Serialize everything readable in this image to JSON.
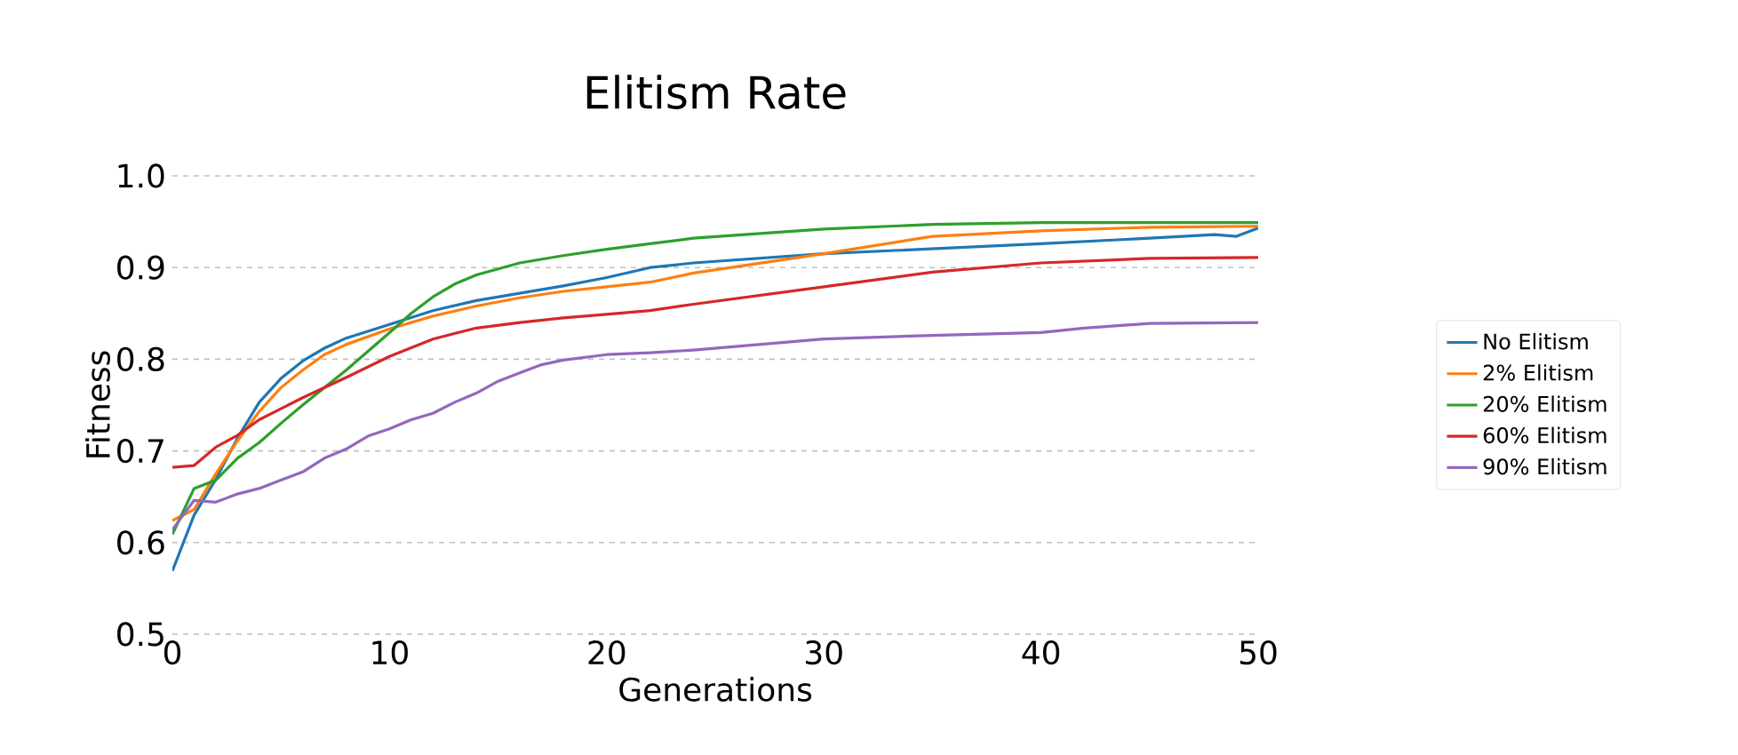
{
  "chart_data": {
    "type": "line",
    "title": "Elitism Rate",
    "xlabel": "Generations",
    "ylabel": "Fitness",
    "xlim": [
      0,
      50
    ],
    "ylim": [
      0.5,
      1.0
    ],
    "xticks": [
      0,
      10,
      20,
      30,
      40,
      50
    ],
    "yticks": [
      {
        "value": 0.5,
        "label": "0.5"
      },
      {
        "value": 0.6,
        "label": "0.6"
      },
      {
        "value": 0.7,
        "label": "0.7"
      },
      {
        "value": 0.8,
        "label": "0.8"
      },
      {
        "value": 0.9,
        "label": "0.9"
      },
      {
        "value": 1.0,
        "label": "1.0"
      }
    ],
    "grid": "y",
    "legend": "right",
    "series": [
      {
        "name": "No Elitism",
        "color": "#1f77b4",
        "x": [
          0,
          1,
          2,
          3,
          4,
          5,
          6,
          7,
          8,
          10,
          12,
          14,
          16,
          18,
          20,
          22,
          24,
          30,
          40,
          45,
          48,
          49,
          50
        ],
        "values": [
          0.569,
          0.63,
          0.669,
          0.714,
          0.753,
          0.779,
          0.798,
          0.812,
          0.823,
          0.838,
          0.853,
          0.864,
          0.872,
          0.88,
          0.889,
          0.9,
          0.905,
          0.915,
          0.926,
          0.932,
          0.936,
          0.934,
          0.943
        ]
      },
      {
        "name": "2% Elitism",
        "color": "#ff7f0e",
        "x": [
          0,
          1,
          2,
          3,
          4,
          5,
          6,
          7,
          8,
          10,
          12,
          14,
          16,
          18,
          20,
          22,
          24,
          30,
          35,
          40,
          45,
          50
        ],
        "values": [
          0.624,
          0.636,
          0.675,
          0.711,
          0.743,
          0.769,
          0.788,
          0.805,
          0.816,
          0.833,
          0.847,
          0.858,
          0.867,
          0.874,
          0.879,
          0.884,
          0.894,
          0.915,
          0.934,
          0.94,
          0.944,
          0.945
        ]
      },
      {
        "name": "20% Elitism",
        "color": "#2ca02c",
        "x": [
          0,
          1,
          2,
          3,
          4,
          5,
          6,
          7,
          8,
          10,
          11,
          12,
          13,
          14,
          16,
          18,
          20,
          22,
          24,
          30,
          35,
          40,
          50
        ],
        "values": [
          0.609,
          0.659,
          0.668,
          0.692,
          0.709,
          0.73,
          0.75,
          0.769,
          0.788,
          0.829,
          0.85,
          0.868,
          0.882,
          0.892,
          0.905,
          0.913,
          0.92,
          0.926,
          0.932,
          0.942,
          0.947,
          0.949,
          0.949
        ]
      },
      {
        "name": "60% Elitism",
        "color": "#d62728",
        "x": [
          0,
          1,
          2,
          3,
          4,
          5,
          6,
          7,
          8,
          10,
          12,
          14,
          16,
          18,
          20,
          22,
          24,
          30,
          35,
          40,
          45,
          50
        ],
        "values": [
          0.682,
          0.684,
          0.704,
          0.717,
          0.734,
          0.746,
          0.758,
          0.769,
          0.78,
          0.803,
          0.822,
          0.834,
          0.84,
          0.845,
          0.849,
          0.853,
          0.86,
          0.879,
          0.895,
          0.905,
          0.91,
          0.911
        ]
      },
      {
        "name": "90% Elitism",
        "color": "#9467bd",
        "x": [
          0,
          1,
          2,
          3,
          4,
          5,
          6,
          7,
          8,
          9,
          10,
          11,
          12,
          13,
          14,
          15,
          16,
          17,
          18,
          20,
          22,
          24,
          30,
          35,
          40,
          42,
          45,
          50
        ],
        "values": [
          0.614,
          0.646,
          0.644,
          0.653,
          0.659,
          0.668,
          0.677,
          0.692,
          0.702,
          0.716,
          0.724,
          0.734,
          0.741,
          0.753,
          0.763,
          0.776,
          0.785,
          0.794,
          0.799,
          0.805,
          0.807,
          0.81,
          0.822,
          0.826,
          0.829,
          0.834,
          0.839,
          0.84
        ]
      }
    ]
  }
}
